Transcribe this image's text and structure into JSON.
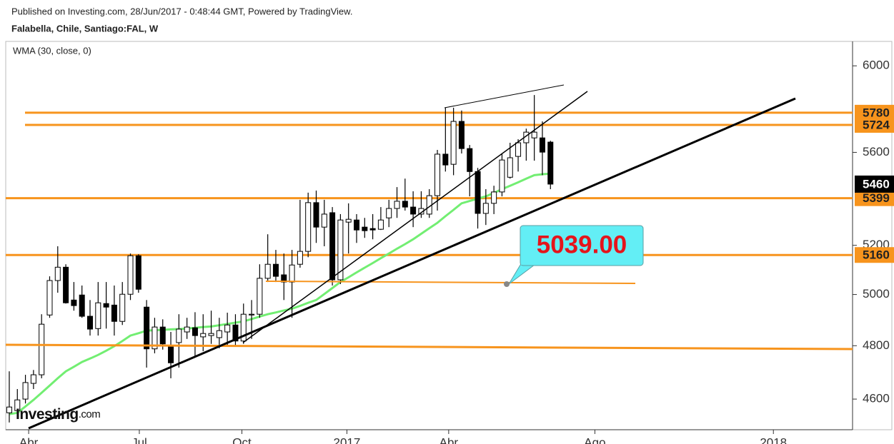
{
  "chart_data": {
    "type": "candlestick",
    "published": "Published on Investing.com, 28/Jun/2017 - 0:48:44 GMT, Powered by TradingView.",
    "title": "Falabella, Chile, Santiago:FAL, W",
    "annotation": "5039.00",
    "watermark": {
      "brand": "Investing",
      "suffix": ".com"
    },
    "categories": [
      null,
      null,
      null,
      null,
      null,
      null,
      null,
      null,
      null,
      null,
      null,
      null,
      null,
      null,
      null,
      null,
      null,
      null,
      null,
      null,
      null,
      null,
      null,
      null,
      null,
      null,
      null,
      null,
      null,
      null,
      null,
      null,
      null,
      null,
      null,
      null,
      null,
      null,
      null,
      null,
      null,
      null,
      null,
      null,
      null,
      null,
      null,
      null,
      null,
      null,
      null,
      null,
      null,
      null,
      null,
      null,
      null,
      null,
      null,
      null,
      null,
      null,
      null,
      null,
      null,
      null,
      null,
      null
    ],
    "open": [
      4550,
      4558,
      4600,
      4658,
      4690,
      4919,
      5056,
      5110,
      4978,
      4998,
      4914,
      4866,
      4964,
      4958,
      4894,
      5001,
      5157,
      4950,
      4788,
      4872,
      4801,
      4812,
      4853,
      4869,
      4834,
      4839,
      4831,
      4853,
      4880,
      4818,
      4919,
      4922,
      5065,
      5122,
      5079,
      5050,
      5122,
      5175,
      5380,
      5276,
      5337,
      5059,
      5297,
      5306,
      5276,
      5270,
      5267,
      5315,
      5355,
      5386,
      5361,
      5331,
      5331,
      5410,
      5592,
      5547,
      5740,
      5617,
      5515,
      5334,
      5377,
      5426,
      5490,
      5582,
      5643,
      5665,
      5665,
      5646
    ],
    "high": [
      4703,
      4637,
      4690,
      4708,
      4922,
      5073,
      5196,
      5122,
      5050,
      5036,
      4978,
      5050,
      5050,
      5036,
      5050,
      5166,
      5163,
      4978,
      4908,
      4902,
      4853,
      4922,
      4908,
      4930,
      4922,
      4936,
      4908,
      4928,
      4922,
      4964,
      4978,
      5122,
      5246,
      5181,
      5166,
      5181,
      5392,
      5423,
      5432,
      5392,
      5361,
      5331,
      5377,
      5331,
      5315,
      5331,
      5361,
      5392,
      5447,
      5484,
      5429,
      5429,
      5438,
      5611,
      5803,
      5803,
      5790,
      5633,
      5531,
      5438,
      5453,
      5595,
      5643,
      5659,
      5707,
      5862,
      5740,
      5652
    ],
    "low": [
      4515,
      4532,
      4584,
      4637,
      4677,
      4908,
      5007,
      4964,
      4936,
      4908,
      4839,
      4839,
      4866,
      4839,
      4880,
      4978,
      5007,
      4717,
      4771,
      4785,
      4677,
      4717,
      4826,
      4757,
      4779,
      4807,
      4790,
      4798,
      4798,
      4807,
      4826,
      4908,
      5050,
      5050,
      4978,
      4908,
      5108,
      5151,
      5210,
      5196,
      5036,
      5042,
      5166,
      5210,
      5231,
      5225,
      5264,
      5276,
      5315,
      5346,
      5276,
      5315,
      5315,
      5346,
      5515,
      5499,
      5595,
      5407,
      5270,
      5285,
      5331,
      5407,
      5484,
      5515,
      5563,
      5563,
      5499,
      5438
    ],
    "close": [
      4571,
      4597,
      4661,
      4690,
      4883,
      5056,
      5110,
      4967,
      4956,
      4914,
      4864,
      4967,
      4950,
      4894,
      5001,
      5157,
      5021,
      4788,
      4872,
      4807,
      4735,
      4864,
      4872,
      4839,
      4847,
      4847,
      4858,
      4880,
      4818,
      4922,
      4922,
      5065,
      5122,
      5073,
      5050,
      5119,
      5175,
      5380,
      5276,
      5331,
      5059,
      5306,
      5309,
      5264,
      5261,
      5264,
      5306,
      5355,
      5386,
      5361,
      5331,
      5355,
      5410,
      5592,
      5544,
      5740,
      5617,
      5515,
      5334,
      5377,
      5426,
      5566,
      5576,
      5643,
      5691,
      5691,
      5601,
      5460
    ],
    "up_color": "#ffffff",
    "down_color": "#000000",
    "candle_border": "#000000",
    "series": [
      {
        "name": "WMA (30, close, 0)",
        "color": "#72ee72",
        "values": [
          4545,
          4550,
          4573,
          4597,
          4623,
          4650,
          4677,
          4703,
          4720,
          4738,
          4751,
          4765,
          4781,
          4798,
          4818,
          4839,
          4848,
          4858,
          4860,
          4861,
          4863,
          4864,
          4866,
          4869,
          4872,
          4874,
          4879,
          4884,
          4889,
          4894,
          4903,
          4913,
          4922,
          4929,
          4937,
          4944,
          4955,
          4967,
          4978,
          5002,
          5026,
          5050,
          5069,
          5089,
          5108,
          5127,
          5147,
          5166,
          5186,
          5205,
          5225,
          5248,
          5271,
          5294,
          5322,
          5349,
          5377,
          5387,
          5397,
          5407,
          5422,
          5438,
          5453,
          5468,
          5484,
          5499,
          5503,
          5506
        ]
      }
    ],
    "levels": [
      5780,
      5724,
      5399,
      5160
    ],
    "level_color": "#f7941d",
    "last_price": 5460,
    "last_price_color": "#000000",
    "xlim": [
      -0.44,
      104.4
    ],
    "xticks": [
      {
        "value": 2.4,
        "label": "Abr"
      },
      {
        "value": 16.1,
        "label": "Jul"
      },
      {
        "value": 28.8,
        "label": "Oct"
      },
      {
        "value": 41.8,
        "label": "2017"
      },
      {
        "value": 54.4,
        "label": "Abr"
      },
      {
        "value": 72.5,
        "label": "Ago"
      },
      {
        "value": 94.6,
        "label": "2018"
      }
    ],
    "ylim": [
      4489,
      6118
    ],
    "log_y": true,
    "yticks": [
      4600,
      4800,
      5000,
      5200,
      5600,
      6000
    ],
    "grid": false
  }
}
